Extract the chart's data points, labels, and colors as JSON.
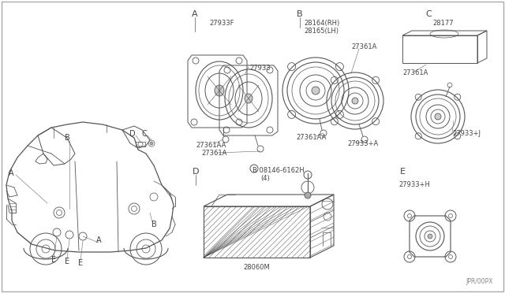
{
  "background_color": "#ffffff",
  "line_color": "#555555",
  "text_color": "#444444",
  "figsize": [
    6.4,
    3.72
  ],
  "dpi": 100,
  "labels": {
    "A_sec": "A",
    "B_sec": "B",
    "C_sec": "C",
    "D_sec": "D",
    "E_sec": "E",
    "part_27933F": "27933F",
    "part_27933": "27933",
    "part_27361AA_1": "27361AA",
    "part_27361A_1": "27361A",
    "part_28164": "28164(RH)",
    "part_28165": "28165(LH)",
    "part_27361A_2": "27361A",
    "part_27361AA_2": "27361AA",
    "part_27933A": "27933+A",
    "part_28177": "28177",
    "part_27361A_3": "27361A",
    "part_27933J": "27933+J",
    "part_08146_line1": "B 08146-6162H",
    "part_08146_line2": "(4)",
    "part_28060M": "28060M",
    "part_27933H": "27933+H",
    "watermark": "JPR/00PX",
    "label_A1": "A",
    "label_A2": "A",
    "label_B1": "B",
    "label_B2": "B",
    "label_C": "C",
    "label_D": "D",
    "label_E1": "E",
    "label_E2": "E",
    "label_E3": "E"
  }
}
